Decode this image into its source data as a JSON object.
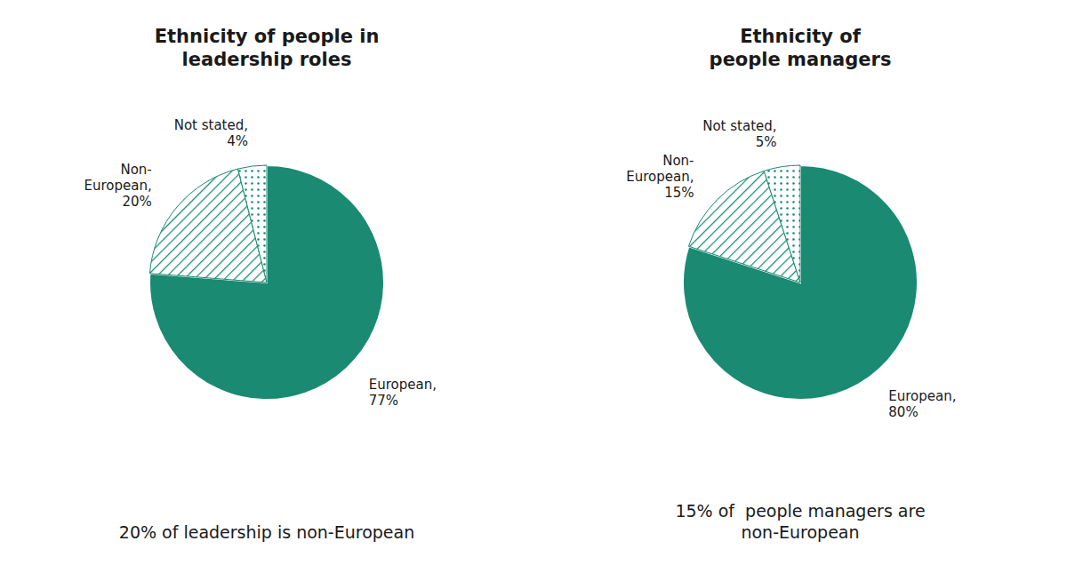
{
  "chart_data": [
    {
      "type": "pie",
      "title": "Ethnicity of people in\nleadership roles",
      "subtitle": "20% of leadership is non-European",
      "values": [
        77,
        20,
        4
      ],
      "value_labels": [
        "European,\n77%",
        "Non-\nEuropean,\n20%",
        "Not stated,\n4%"
      ],
      "color": "#1a8a72"
    },
    {
      "type": "pie",
      "title": "Ethnicity of\npeople managers",
      "subtitle": "15% of  people managers are\nnon-European",
      "values": [
        80,
        15,
        5
      ],
      "value_labels": [
        "European,\n80%",
        "Non-\nEuropean,\n15%",
        "Not stated,\n5%"
      ],
      "color": "#1a8a72"
    }
  ]
}
